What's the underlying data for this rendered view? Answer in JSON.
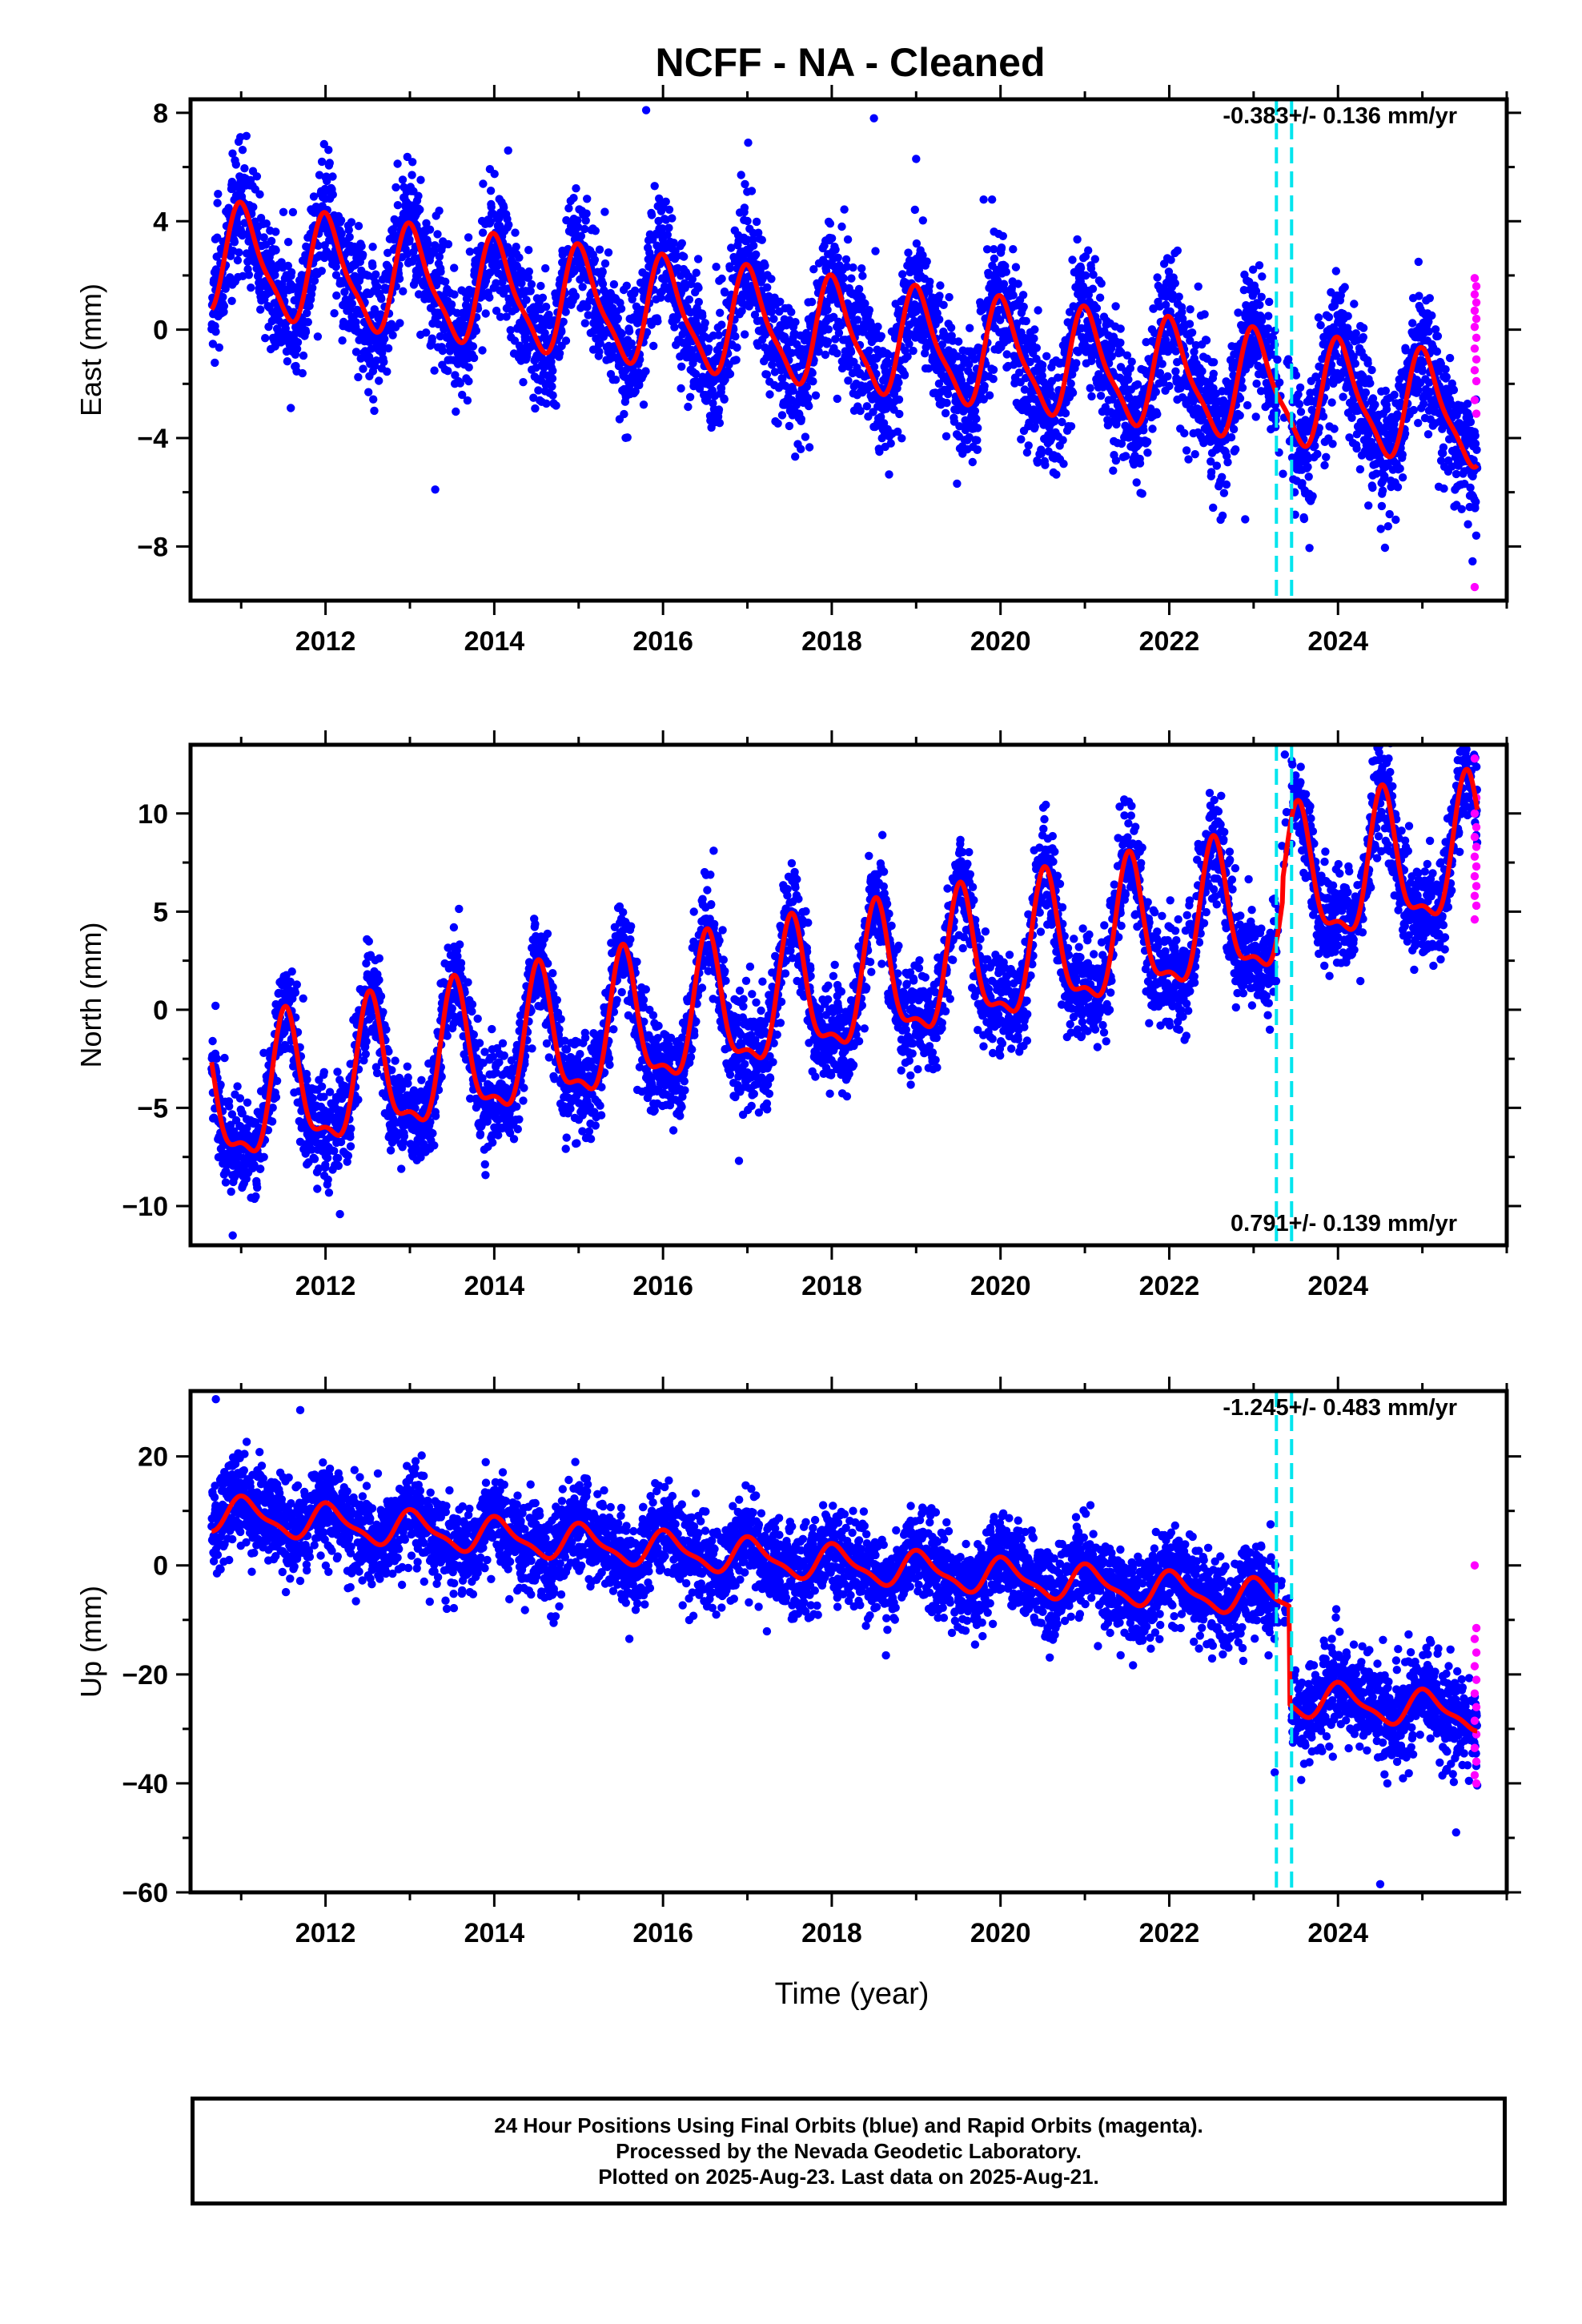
{
  "title": "NCFF  - NA - Cleaned",
  "xlabel": "Time (year)",
  "colors": {
    "final_orbits": "#0000ff",
    "rapid_orbits": "#ff00ff",
    "model": "#ff0000",
    "event_lines": "#00e5ee"
  },
  "footer": {
    "line1": "24 Hour Positions Using Final Orbits (blue) and Rapid Orbits (magenta).",
    "line2": "Processed by the Nevada Geodetic Laboratory.",
    "line3": "Plotted on 2025-Aug-23. Last data on 2025-Aug-21."
  },
  "chart_data": [
    {
      "type": "scatter",
      "component": "East",
      "ylabel": "East (mm)",
      "rate_label": "-0.383+/- 0.136 mm/yr",
      "rate_position": "top-right",
      "xlim": [
        2010.4,
        2026.0
      ],
      "ylim": [
        -10,
        8.5
      ],
      "x_ticks": [
        2012,
        2014,
        2016,
        2018,
        2020,
        2022,
        2024
      ],
      "y_ticks": [
        -8,
        -4,
        0,
        4,
        8
      ],
      "y_tick_labels": [
        "−8",
        "−4",
        "0",
        "4",
        "8"
      ],
      "event_lines_x": [
        2023.27,
        2023.45
      ],
      "model": {
        "t0": 2010.65,
        "t1": 2025.65,
        "offset": 2.6,
        "rate": -0.383,
        "annual_amp": 1.9,
        "semiannual_amp": 0.5,
        "annual_phase": 1.35,
        "step_at": 2023.35,
        "step": 0.0
      },
      "final_scatter": {
        "sigma": 1.2,
        "n": 5200
      },
      "rapid": {
        "x": 2025.62,
        "y": [
          1.9,
          1.6,
          1.3,
          1.0,
          0.7,
          0.4,
          0.1,
          -0.3,
          -0.7,
          -1.1,
          -1.5,
          -1.9,
          -2.6,
          -3.1,
          -9.5
        ]
      },
      "outliers": [
        [
          2013.3,
          -5.9
        ],
        [
          2018.5,
          7.8
        ],
        [
          2019.0,
          6.3
        ],
        [
          2019.8,
          4.8
        ],
        [
          2019.9,
          4.8
        ],
        [
          2022.9,
          -7.0
        ],
        [
          2015.8,
          8.1
        ]
      ]
    },
    {
      "type": "scatter",
      "component": "North",
      "ylabel": "North (mm)",
      "rate_label": "0.791+/- 0.139 mm/yr",
      "rate_position": "bottom-right",
      "xlim": [
        2010.4,
        2026.0
      ],
      "ylim": [
        -12,
        13.5
      ],
      "x_ticks": [
        2012,
        2014,
        2016,
        2018,
        2020,
        2022,
        2024
      ],
      "y_ticks": [
        -10,
        -5,
        0,
        5,
        10
      ],
      "y_tick_labels": [
        "−10",
        "−5",
        "0",
        "5",
        "10"
      ],
      "event_lines_x": [
        2023.27,
        2023.45
      ],
      "model": {
        "t0": 2010.65,
        "t1": 2025.65,
        "offset": -5.0,
        "rate": 0.791,
        "annual_amp": 3.3,
        "semiannual_amp": 1.2,
        "annual_phase": 4.5,
        "step_at": 2023.35,
        "step": 1.0
      },
      "final_scatter": {
        "sigma": 1.3,
        "n": 5200
      },
      "rapid": {
        "x": 2025.62,
        "y": [
          12.8,
          10.8,
          10.0,
          9.3,
          8.8,
          8.3,
          7.8,
          7.3,
          6.8,
          6.3,
          5.8,
          5.3,
          4.6
        ]
      },
      "outliers": [
        [
          2016.6,
          8.1
        ],
        [
          2016.9,
          -7.7
        ],
        [
          2018.6,
          8.9
        ],
        [
          2023.37,
          13.0
        ],
        [
          2024.6,
          12.8
        ],
        [
          2010.9,
          -11.5
        ]
      ]
    },
    {
      "type": "scatter",
      "component": "Up",
      "ylabel": "Up (mm)",
      "rate_label": "-1.245+/- 0.483 mm/yr",
      "rate_position": "top-right",
      "xlim": [
        2010.4,
        2026.0
      ],
      "ylim": [
        -60,
        32
      ],
      "x_ticks": [
        2012,
        2014,
        2016,
        2018,
        2020,
        2022,
        2024
      ],
      "y_ticks": [
        -60,
        -40,
        -20,
        0,
        20
      ],
      "y_tick_labels": [
        "−60",
        "−40",
        "−20",
        "0",
        "20"
      ],
      "event_lines_x": [
        2023.27,
        2023.45
      ],
      "model": {
        "t0": 2010.65,
        "t1": 2025.65,
        "offset": 9.5,
        "rate": -1.245,
        "annual_amp": 3.0,
        "semiannual_amp": 1.0,
        "annual_phase": 1.2,
        "step_at": 2023.43,
        "step": -18.0
      },
      "final_scatter": {
        "sigma": 4.2,
        "n": 5200
      },
      "rapid": {
        "x": 2025.62,
        "y": [
          0.0,
          -11.5,
          -13.5,
          -16.0,
          -18.5,
          -21.0,
          -23.5,
          -26.0,
          -28.5,
          -31.0,
          -33.5,
          -36.0,
          -38.5,
          -40.0
        ]
      },
      "outliers": [
        [
          2010.7,
          30.5
        ],
        [
          2011.7,
          28.5
        ],
        [
          2023.25,
          -38.0
        ],
        [
          2024.5,
          -58.5
        ],
        [
          2025.4,
          -49.0
        ]
      ]
    }
  ]
}
